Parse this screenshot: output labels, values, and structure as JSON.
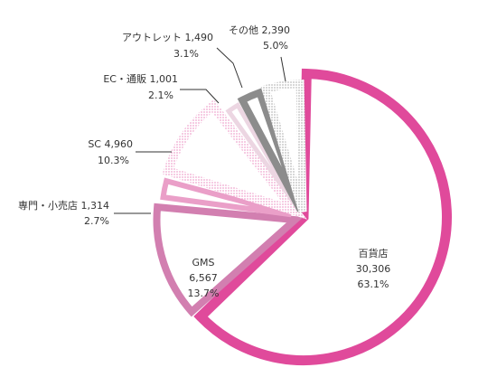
{
  "chart_data": {
    "type": "pie",
    "title": "",
    "slices": [
      {
        "label": "百貨店",
        "value": "30,306",
        "percent": "63.1%",
        "pct": 63.1,
        "color": "#e04a9b",
        "style": "solid"
      },
      {
        "label": "GMS",
        "value": "6,567",
        "percent": "13.7%",
        "pct": 13.7,
        "color": "#d27fb0",
        "style": "solid"
      },
      {
        "label": "専門・小売店",
        "value": "1,314",
        "percent": "2.7%",
        "pct": 2.7,
        "color": "#ea9fc8",
        "style": "solid"
      },
      {
        "label": "SC",
        "value": "4,960",
        "percent": "10.3%",
        "pct": 10.3,
        "color": "#f3bfdb",
        "style": "dotted"
      },
      {
        "label": "EC・通販",
        "value": "1,001",
        "percent": "2.1%",
        "pct": 2.1,
        "color": "#ecd6e2",
        "style": "solid"
      },
      {
        "label": "アウトレット",
        "value": "1,490",
        "percent": "3.1%",
        "pct": 3.1,
        "color": "#8c8c8c",
        "style": "solid"
      },
      {
        "label": "その他",
        "value": "2,390",
        "percent": "5.0%",
        "pct": 5.0,
        "color": "#cccccc",
        "style": "dotted"
      }
    ]
  }
}
